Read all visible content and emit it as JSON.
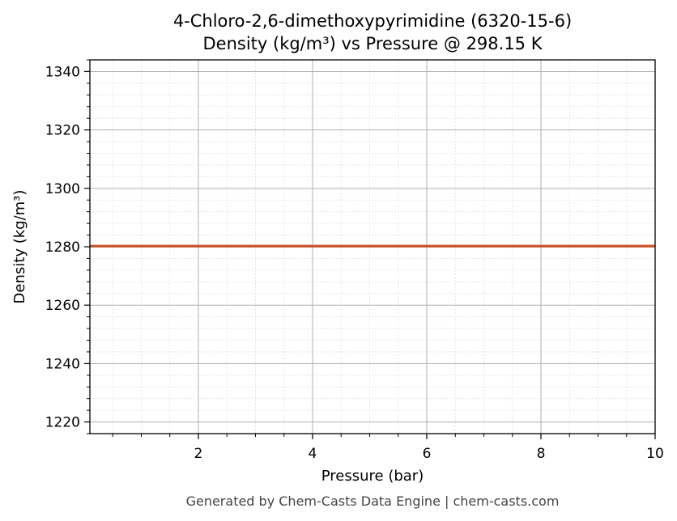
{
  "chart_data": {
    "type": "line",
    "title": "4-Chloro-2,6-dimethoxypyrimidine (6320-15-6)",
    "subtitle": "Density (kg/m³) vs Pressure @ 298.15 K",
    "xlabel": "Pressure (bar)",
    "ylabel": "Density (kg/m³)",
    "xlim": [
      0.1,
      10
    ],
    "ylim": [
      1216,
      1344
    ],
    "x_ticks": [
      2,
      4,
      6,
      8,
      10
    ],
    "y_ticks": [
      1220,
      1240,
      1260,
      1280,
      1300,
      1320,
      1340
    ],
    "x_minor_step": 0.5,
    "y_minor_step": 4,
    "grid": true,
    "series": [
      {
        "color": "#c8542b",
        "x": [
          0.1,
          10
        ],
        "y": [
          1280.2,
          1280.2
        ]
      }
    ]
  },
  "footer": "Generated by Chem-Casts Data Engine | chem-casts.com"
}
